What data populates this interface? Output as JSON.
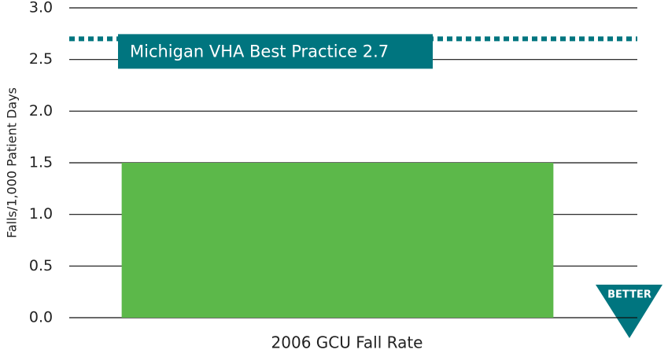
{
  "chart_data": {
    "type": "bar",
    "categories": [
      "2006 GCU Fall Rate"
    ],
    "values": [
      1.5
    ],
    "color": "#5cb84a",
    "ylabel": "Falls/1,000 Patient Days",
    "ylim": [
      0,
      3
    ],
    "yticks": [
      {
        "value": 0,
        "label": "0.0"
      },
      0.5,
      {
        "value": 1,
        "label": "1.0"
      },
      1.5,
      {
        "value": 2,
        "label": "2.0"
      },
      2.5,
      {
        "value": 3,
        "label": "3.0"
      }
    ],
    "grid": true,
    "reference_line": {
      "value": 2.7,
      "label": "Michigan VHA Best Practice 2.7",
      "color": "#00757f"
    },
    "annotation": "BETTER"
  }
}
